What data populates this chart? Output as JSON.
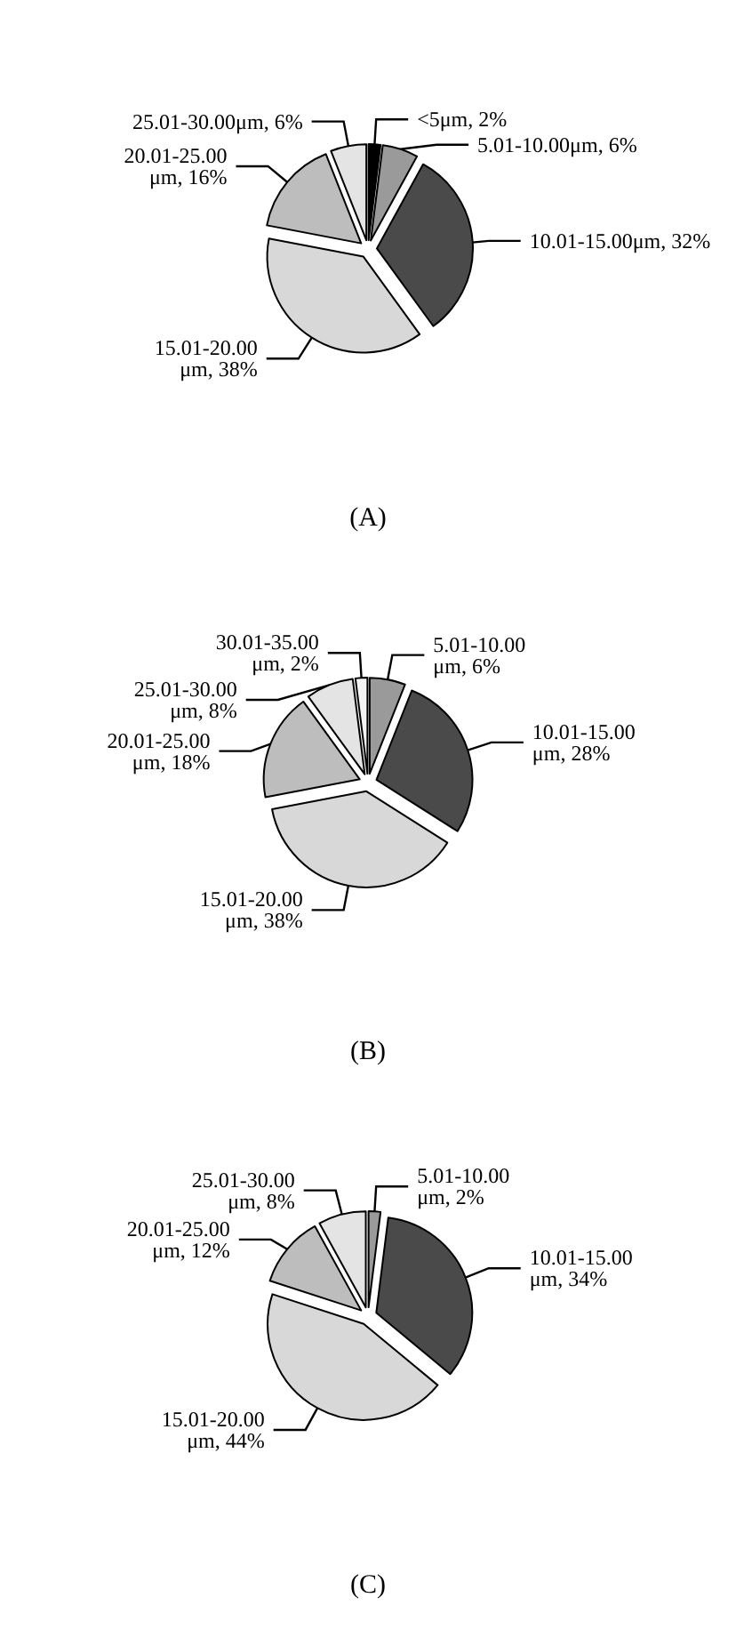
{
  "chart_data": [
    {
      "type": "pie",
      "title": "(A)",
      "categories": [
        "<5μm",
        "5.01-10.00μm",
        "10.01-15.00μm",
        "15.01-20.00 μm",
        "20.01-25.00 μm",
        "25.01-30.00μm"
      ],
      "values": [
        2,
        6,
        32,
        38,
        16,
        6
      ],
      "value_labels": [
        "2%",
        "6%",
        "32%",
        "38%",
        "16%",
        "6%"
      ],
      "colors": [
        "#000000",
        "#9a9a9a",
        "#4a4a4a",
        "#d8d8d8",
        "#bdbdbd",
        "#e4e4e4"
      ],
      "legend": false
    },
    {
      "type": "pie",
      "title": "(B)",
      "categories": [
        "5.01-10.00 μm",
        "10.01-15.00 μm",
        "15.01-20.00 μm",
        "20.01-25.00 μm",
        "25.01-30.00 μm",
        "30.01-35.00 μm"
      ],
      "values": [
        6,
        28,
        38,
        18,
        8,
        2
      ],
      "value_labels": [
        "6%",
        "28%",
        "38%",
        "18%",
        "8%",
        "2%"
      ],
      "colors": [
        "#9a9a9a",
        "#4a4a4a",
        "#d8d8d8",
        "#bdbdbd",
        "#e4e4e4",
        "#f4f4f4"
      ],
      "legend": false
    },
    {
      "type": "pie",
      "title": "(C)",
      "categories": [
        "5.01-10.00 μm",
        "10.01-15.00 μm",
        "15.01-20.00 μm",
        "20.01-25.00 μm",
        "25.01-30.00 μm"
      ],
      "values": [
        2,
        34,
        44,
        12,
        8
      ],
      "value_labels": [
        "2%",
        "34%",
        "44%",
        "12%",
        "8%"
      ],
      "colors": [
        "#9a9a9a",
        "#4a4a4a",
        "#d8d8d8",
        "#bdbdbd",
        "#e4e4e4"
      ],
      "legend": false
    }
  ]
}
